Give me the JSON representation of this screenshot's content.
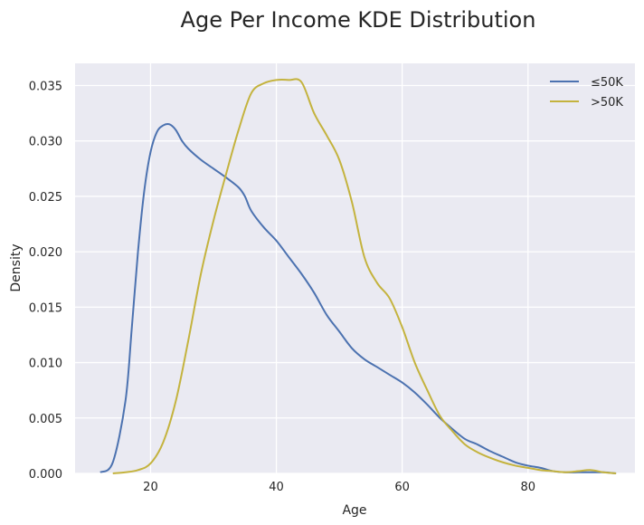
{
  "chart_data": {
    "type": "line",
    "title": "Age Per Income KDE Distribution",
    "xlabel": "Age",
    "ylabel": "Density",
    "xlim": [
      8,
      97
    ],
    "ylim": [
      0,
      0.037
    ],
    "xticks": [
      "20",
      "40",
      "60",
      "80"
    ],
    "xtick_values": [
      20,
      40,
      60,
      80
    ],
    "yticks": [
      "0.000",
      "0.005",
      "0.010",
      "0.015",
      "0.020",
      "0.025",
      "0.030",
      "0.035"
    ],
    "ytick_values": [
      0,
      0.005,
      0.01,
      0.015,
      0.02,
      0.025,
      0.03,
      0.035
    ],
    "grid": true,
    "legend_position": "top-right",
    "colors": {
      "background": "#eaeaf2",
      "grid": "#ffffff",
      "series_1": "#4c72b0",
      "series_2": "#c4b33e"
    },
    "series": [
      {
        "name": "≤50K",
        "color": "#4c72b0",
        "x": [
          12,
          14,
          16,
          17,
          18,
          19,
          20,
          21,
          22,
          23,
          24,
          25,
          26,
          28,
          30,
          32,
          34,
          35,
          36,
          38,
          40,
          42,
          44,
          46,
          48,
          50,
          52,
          54,
          56,
          58,
          60,
          62,
          64,
          66,
          68,
          70,
          72,
          74,
          76,
          78,
          80,
          82,
          84,
          86,
          88,
          90,
          92,
          94
        ],
        "y": [
          0.0001,
          0.001,
          0.0065,
          0.013,
          0.02,
          0.0255,
          0.029,
          0.0308,
          0.0314,
          0.0315,
          0.031,
          0.03,
          0.0293,
          0.0283,
          0.0275,
          0.0267,
          0.0258,
          0.025,
          0.0237,
          0.0222,
          0.021,
          0.0195,
          0.018,
          0.0163,
          0.0143,
          0.0128,
          0.0113,
          0.0103,
          0.0096,
          0.0089,
          0.0082,
          0.0073,
          0.0062,
          0.005,
          0.004,
          0.0031,
          0.0026,
          0.002,
          0.0015,
          0.001,
          0.0007,
          0.0005,
          0.0002,
          0.0001,
          0.0001,
          0.0001,
          0.0001,
          0.0
        ]
      },
      {
        "name": ">50K",
        "color": "#c4b33e",
        "x": [
          14,
          16,
          18,
          20,
          22,
          24,
          26,
          28,
          30,
          32,
          34,
          36,
          38,
          40,
          42,
          44,
          46,
          48,
          50,
          52,
          54,
          56,
          58,
          60,
          62,
          64,
          66,
          68,
          70,
          72,
          74,
          76,
          78,
          80,
          82,
          84,
          86,
          88,
          90,
          92,
          94
        ],
        "y": [
          0.0,
          0.0001,
          0.0003,
          0.0009,
          0.0028,
          0.0065,
          0.012,
          0.018,
          0.0228,
          0.027,
          0.031,
          0.0343,
          0.0352,
          0.0355,
          0.0355,
          0.0353,
          0.0325,
          0.0305,
          0.0283,
          0.0245,
          0.0195,
          0.0172,
          0.0158,
          0.0132,
          0.01,
          0.0075,
          0.0052,
          0.0038,
          0.0026,
          0.0019,
          0.0014,
          0.001,
          0.0007,
          0.0005,
          0.0003,
          0.0002,
          0.0001,
          0.0002,
          0.0003,
          0.0001,
          0.0
        ]
      }
    ]
  }
}
